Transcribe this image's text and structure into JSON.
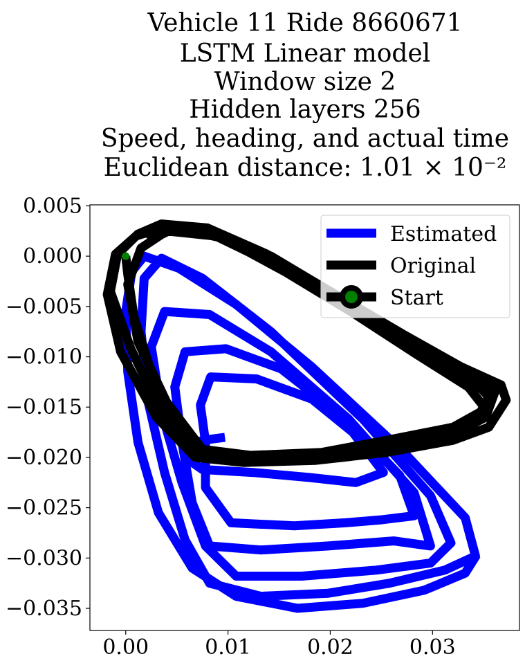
{
  "chart_data": {
    "type": "line",
    "title_lines": [
      "Vehicle 11 Ride 8660671",
      "LSTM Linear model",
      "Window size 2",
      "Hidden layers 256",
      "Speed, heading, and actual time",
      "Euclidean distance: 1.01 × 10⁻²"
    ],
    "xlabel": "",
    "ylabel": "",
    "xlim": [
      -0.0035,
      0.0385
    ],
    "ylim": [
      -0.0372,
      0.0051
    ],
    "x_ticks": [
      0.0,
      0.01,
      0.02,
      0.03
    ],
    "x_tick_labels": [
      "0.00",
      "0.01",
      "0.02",
      "0.03"
    ],
    "y_ticks": [
      0.005,
      0.0,
      -0.005,
      -0.01,
      -0.015,
      -0.02,
      -0.025,
      -0.03,
      -0.035
    ],
    "y_tick_labels": [
      "0.005",
      "0.000",
      "−0.005",
      "−0.010",
      "−0.015",
      "−0.020",
      "−0.025",
      "−0.030",
      "−0.035"
    ],
    "grid": false,
    "legend_position": "top-right",
    "series": [
      {
        "name": "Estimated",
        "color": "#0000ff",
        "points": [
          [
            0.0097,
            -0.018
          ],
          [
            0.0075,
            -0.0183
          ],
          [
            0.0065,
            -0.0205
          ],
          [
            0.0075,
            -0.0212
          ],
          [
            0.0125,
            -0.0215
          ],
          [
            0.018,
            -0.022
          ],
          [
            0.0225,
            -0.0225
          ],
          [
            0.0252,
            -0.0215
          ],
          [
            0.0222,
            -0.0175
          ],
          [
            0.0182,
            -0.0142
          ],
          [
            0.0128,
            -0.0122
          ],
          [
            0.0083,
            -0.012
          ],
          [
            0.0073,
            -0.0148
          ],
          [
            0.0078,
            -0.0185
          ],
          [
            0.0078,
            -0.023
          ],
          [
            0.0103,
            -0.0265
          ],
          [
            0.0165,
            -0.0268
          ],
          [
            0.0215,
            -0.0265
          ],
          [
            0.025,
            -0.0262
          ],
          [
            0.0282,
            -0.0258
          ],
          [
            0.0268,
            -0.0218
          ],
          [
            0.0215,
            -0.0162
          ],
          [
            0.0152,
            -0.0112
          ],
          [
            0.0098,
            -0.0092
          ],
          [
            0.0058,
            -0.0095
          ],
          [
            0.0048,
            -0.013
          ],
          [
            0.0055,
            -0.0185
          ],
          [
            0.0065,
            -0.0245
          ],
          [
            0.0082,
            -0.0288
          ],
          [
            0.0132,
            -0.0292
          ],
          [
            0.0198,
            -0.0288
          ],
          [
            0.0262,
            -0.0283
          ],
          [
            0.0298,
            -0.0288
          ],
          [
            0.0282,
            -0.0235
          ],
          [
            0.0218,
            -0.0162
          ],
          [
            0.0142,
            -0.0095
          ],
          [
            0.0082,
            -0.0058
          ],
          [
            0.0038,
            -0.0055
          ],
          [
            0.0025,
            -0.009
          ],
          [
            0.0035,
            -0.0155
          ],
          [
            0.0055,
            -0.0225
          ],
          [
            0.0078,
            -0.0288
          ],
          [
            0.0108,
            -0.0318
          ],
          [
            0.0172,
            -0.0318
          ],
          [
            0.0245,
            -0.0312
          ],
          [
            0.0298,
            -0.0305
          ],
          [
            0.0318,
            -0.0285
          ],
          [
            0.0298,
            -0.0238
          ],
          [
            0.0232,
            -0.0162
          ],
          [
            0.0142,
            -0.0075
          ],
          [
            0.0075,
            -0.0022
          ],
          [
            0.0035,
            -0.0002
          ],
          [
            0.0018,
            -0.0022
          ],
          [
            0.0015,
            -0.0075
          ],
          [
            0.0022,
            -0.0145
          ],
          [
            0.0038,
            -0.0215
          ],
          [
            0.0058,
            -0.0282
          ],
          [
            0.0082,
            -0.0325
          ],
          [
            0.0132,
            -0.0338
          ],
          [
            0.0198,
            -0.0335
          ],
          [
            0.0258,
            -0.0325
          ],
          [
            0.0312,
            -0.0312
          ],
          [
            0.0342,
            -0.0298
          ],
          [
            0.0332,
            -0.026
          ],
          [
            0.0272,
            -0.0195
          ],
          [
            0.0182,
            -0.011
          ],
          [
            0.0108,
            -0.0048
          ],
          [
            0.0052,
            -0.0012
          ],
          [
            0.0018,
            0.0
          ],
          [
            0.0006,
            -0.0015
          ],
          [
            0.0,
            -0.0055
          ],
          [
            0.0002,
            -0.0115
          ],
          [
            0.0012,
            -0.0185
          ],
          [
            0.0032,
            -0.0255
          ],
          [
            0.0065,
            -0.031
          ],
          [
            0.0108,
            -0.0338
          ],
          [
            0.0168,
            -0.035
          ],
          [
            0.0232,
            -0.0345
          ],
          [
            0.0292,
            -0.0332
          ],
          [
            0.0332,
            -0.0315
          ],
          [
            0.0343,
            -0.0297
          ]
        ]
      },
      {
        "name": "Original",
        "color": "#000000",
        "points": [
          [
            0.0022,
            0.0015
          ],
          [
            0.0048,
            0.0028
          ],
          [
            0.0095,
            0.0018
          ],
          [
            0.0155,
            -0.0015
          ],
          [
            0.022,
            -0.0055
          ],
          [
            0.0285,
            -0.0098
          ],
          [
            0.0335,
            -0.013
          ],
          [
            0.0352,
            -0.0152
          ],
          [
            0.032,
            -0.017
          ],
          [
            0.026,
            -0.0182
          ],
          [
            0.0192,
            -0.0195
          ],
          [
            0.0122,
            -0.0198
          ],
          [
            0.0075,
            -0.0192
          ],
          [
            0.004,
            -0.0145
          ],
          [
            0.0012,
            -0.0085
          ],
          [
            0.0002,
            -0.0028
          ],
          [
            0.0015,
            0.0008
          ],
          [
            0.004,
            0.0025
          ],
          [
            0.0088,
            0.002
          ],
          [
            0.0145,
            -0.0008
          ],
          [
            0.0212,
            -0.0048
          ],
          [
            0.0278,
            -0.0088
          ],
          [
            0.0332,
            -0.0122
          ],
          [
            0.0362,
            -0.0132
          ],
          [
            0.0352,
            -0.016
          ],
          [
            0.0318,
            -0.0178
          ],
          [
            0.0258,
            -0.0192
          ],
          [
            0.0188,
            -0.02
          ],
          [
            0.012,
            -0.0202
          ],
          [
            0.0072,
            -0.0198
          ],
          [
            0.0035,
            -0.0155
          ],
          [
            0.0005,
            -0.0092
          ],
          [
            -0.0015,
            -0.0035
          ],
          [
            -0.0008,
            0.0002
          ],
          [
            0.0012,
            0.0022
          ],
          [
            0.0035,
            0.0032
          ],
          [
            0.008,
            0.0028
          ],
          [
            0.0138,
            0.0002
          ],
          [
            0.0205,
            -0.0038
          ],
          [
            0.0272,
            -0.0078
          ],
          [
            0.0328,
            -0.011
          ],
          [
            0.0367,
            -0.0128
          ],
          [
            0.0372,
            -0.0143
          ],
          [
            0.0355,
            -0.017
          ],
          [
            0.032,
            -0.0183
          ],
          [
            0.0255,
            -0.0195
          ],
          [
            0.0185,
            -0.0203
          ],
          [
            0.0115,
            -0.0205
          ],
          [
            0.0068,
            -0.02
          ],
          [
            0.003,
            -0.016
          ],
          [
            -0.0005,
            -0.0095
          ],
          [
            -0.0018,
            -0.0038
          ],
          [
            -0.001,
            0.0002
          ],
          [
            0.001,
            0.002
          ],
          [
            0.0035,
            0.0028
          ],
          [
            0.0082,
            0.0025
          ],
          [
            0.0142,
            0.0
          ],
          [
            0.0208,
            -0.004
          ],
          [
            0.0275,
            -0.008
          ],
          [
            0.033,
            -0.0112
          ],
          [
            0.0355,
            -0.014
          ],
          [
            0.034,
            -0.0168
          ],
          [
            0.0305,
            -0.018
          ],
          [
            0.0242,
            -0.019
          ],
          [
            0.0172,
            -0.0198
          ],
          [
            0.0108,
            -0.02
          ],
          [
            0.0072,
            -0.0192
          ],
          [
            0.005,
            -0.0165
          ],
          [
            0.0025,
            -0.0115
          ],
          [
            0.0008,
            -0.006
          ],
          [
            0.0002,
            -0.0018
          ],
          [
            0.0,
            0.0
          ]
        ]
      }
    ],
    "legend": [
      {
        "label": "Estimated",
        "color": "#0000ff",
        "marker": "none"
      },
      {
        "label": "Original",
        "color": "#000000",
        "marker": "none"
      },
      {
        "label": "Start",
        "color": "#000000",
        "marker": "circle",
        "marker_face_color": "#008000"
      }
    ],
    "start_point": {
      "x": 0.0,
      "y": 0.0,
      "color": "#008000"
    }
  }
}
